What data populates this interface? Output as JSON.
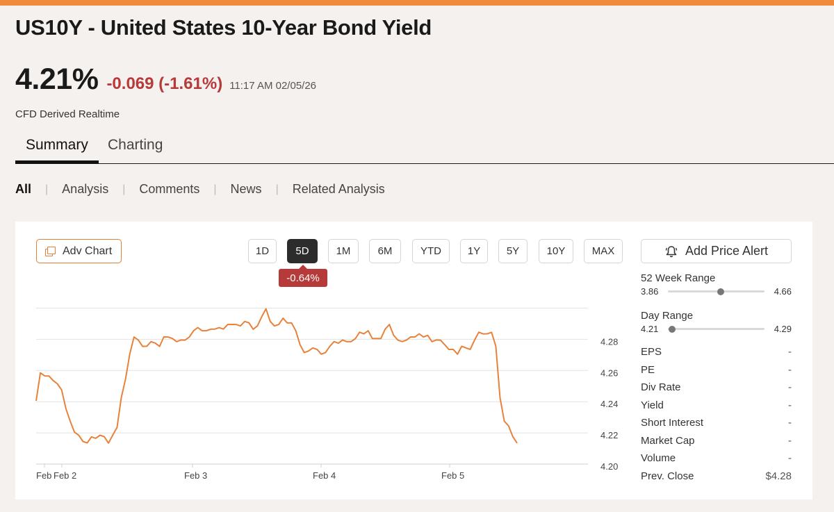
{
  "colors": {
    "accent": "#f08a3c",
    "negative": "#b73a3a",
    "line": "#e8823a"
  },
  "title": "US10Y - United States 10-Year Bond Yield",
  "price": {
    "value": "4.21%",
    "change": "-0.069 (-1.61%)",
    "timestamp": "11:17 AM 02/05/26",
    "source": "CFD Derived Realtime"
  },
  "tabs": [
    {
      "label": "Summary",
      "active": true
    },
    {
      "label": "Charting",
      "active": false
    }
  ],
  "filters": [
    "All",
    "Analysis",
    "Comments",
    "News",
    "Related Analysis"
  ],
  "chart_toolbar": {
    "adv_chart_label": "Adv Chart",
    "adv_chart_icon": "window-stack-icon",
    "ranges": [
      "1D",
      "5D",
      "1M",
      "6M",
      "YTD",
      "1Y",
      "5Y",
      "10Y",
      "MAX"
    ],
    "active_range": "5D",
    "active_range_change": "-0.64%"
  },
  "alert": {
    "label": "Add Price Alert",
    "icon": "bell-icon"
  },
  "chart_data": {
    "type": "line",
    "y_ticks": [
      "4.28",
      "4.26",
      "4.24",
      "4.22",
      "4.20"
    ],
    "x_ticks": [
      "Feb",
      "Feb 2",
      "Feb 3",
      "Feb 4",
      "Feb 5"
    ],
    "ylim": [
      4.2,
      4.3
    ],
    "grid": true,
    "series": [
      {
        "values": [
          4.24,
          4.259,
          4.256,
          4.257,
          4.253,
          4.252,
          4.247,
          4.236,
          4.227,
          4.221,
          4.218,
          4.215,
          4.213,
          4.218,
          4.216,
          4.219,
          4.217,
          4.214,
          4.218,
          4.224,
          4.242,
          4.255,
          4.27,
          4.282,
          4.279,
          4.276,
          4.275,
          4.279,
          4.277,
          4.276,
          4.281,
          4.282,
          4.28,
          4.279,
          4.279,
          4.28,
          4.281,
          4.286,
          4.287,
          4.286,
          4.285,
          4.287,
          4.286,
          4.288,
          4.286,
          4.29,
          4.289,
          4.29,
          4.288,
          4.292,
          4.29,
          4.287,
          4.288,
          4.295,
          4.299,
          4.292,
          4.288,
          4.29,
          4.293,
          4.291,
          4.29,
          4.286,
          4.276,
          4.272,
          4.272,
          4.275,
          4.273,
          4.271,
          4.271,
          4.276,
          4.278,
          4.278,
          4.279,
          4.279,
          4.278,
          4.281,
          4.284,
          4.284,
          4.285,
          4.281,
          4.28,
          4.281,
          4.286,
          4.29,
          4.282,
          4.28,
          4.278,
          4.28,
          4.281,
          4.282,
          4.283,
          4.282,
          4.282,
          4.279,
          4.279,
          4.28,
          4.276,
          4.274,
          4.273,
          4.271,
          4.275,
          4.275,
          4.273,
          4.28,
          4.284,
          4.284,
          4.283,
          4.285,
          4.275,
          4.243,
          4.227,
          4.225,
          4.217,
          4.214
        ]
      }
    ]
  },
  "ranges": {
    "week52": {
      "label": "52 Week Range",
      "low": "3.86",
      "high": "4.66",
      "position": 0.55
    },
    "day": {
      "label": "Day Range",
      "low": "4.21",
      "high": "4.29",
      "position": 0.04
    }
  },
  "stats": [
    {
      "label": "EPS",
      "value": "-"
    },
    {
      "label": "PE",
      "value": "-"
    },
    {
      "label": "Div Rate",
      "value": "-"
    },
    {
      "label": "Yield",
      "value": "-"
    },
    {
      "label": "Short Interest",
      "value": "-"
    },
    {
      "label": "Market Cap",
      "value": "-"
    },
    {
      "label": "Volume",
      "value": "-"
    },
    {
      "label": "Prev. Close",
      "value": "$4.28"
    }
  ]
}
